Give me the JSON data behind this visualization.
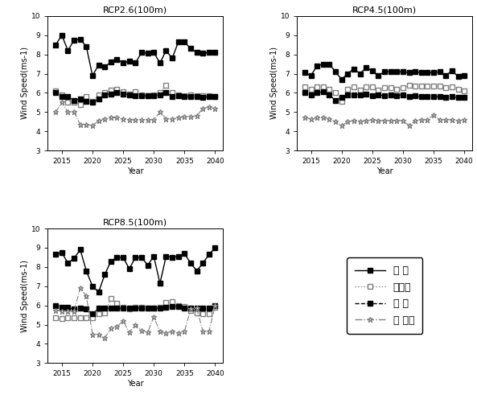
{
  "years": [
    2014,
    2015,
    2016,
    2017,
    2018,
    2019,
    2020,
    2021,
    2022,
    2023,
    2024,
    2025,
    2026,
    2027,
    2028,
    2029,
    2030,
    2031,
    2032,
    2033,
    2034,
    2035,
    2036,
    2037,
    2038,
    2039,
    2040
  ],
  "rcp26": {
    "hankang": [
      8.5,
      9.0,
      8.2,
      8.75,
      8.8,
      8.4,
      6.9,
      7.45,
      7.35,
      7.6,
      7.75,
      7.55,
      7.65,
      7.55,
      8.1,
      8.05,
      8.1,
      7.55,
      8.2,
      7.8,
      8.65,
      8.65,
      8.3,
      8.1,
      8.05,
      8.1,
      8.1
    ],
    "daegwallyeong": [
      6.1,
      5.9,
      5.5,
      5.5,
      5.4,
      5.8,
      5.55,
      5.9,
      6.0,
      6.15,
      6.2,
      6.05,
      5.95,
      6.05,
      5.9,
      5.85,
      5.9,
      6.0,
      6.4,
      6.0,
      5.9,
      5.85,
      5.9,
      5.85,
      5.85,
      5.85,
      5.8
    ],
    "yeongil": [
      6.0,
      5.8,
      5.8,
      5.6,
      5.7,
      5.55,
      5.5,
      5.7,
      5.9,
      5.95,
      6.0,
      5.95,
      5.9,
      5.85,
      5.85,
      5.85,
      5.85,
      5.9,
      6.0,
      5.8,
      5.85,
      5.8,
      5.8,
      5.8,
      5.75,
      5.8,
      5.8
    ],
    "seonamhae": [
      5.0,
      5.5,
      5.0,
      5.0,
      4.35,
      4.35,
      4.3,
      4.55,
      4.65,
      4.7,
      4.7,
      4.65,
      4.6,
      4.6,
      4.6,
      4.6,
      4.6,
      5.0,
      4.65,
      4.65,
      4.7,
      4.75,
      4.75,
      4.8,
      5.2,
      5.25,
      5.2
    ]
  },
  "rcp45": {
    "hankang": [
      7.05,
      6.9,
      7.4,
      7.5,
      7.5,
      7.1,
      6.7,
      7.0,
      7.25,
      7.0,
      7.3,
      7.15,
      6.9,
      7.1,
      7.1,
      7.1,
      7.1,
      7.05,
      7.1,
      7.05,
      7.05,
      7.05,
      7.1,
      6.9,
      7.15,
      6.85,
      6.9
    ],
    "daegwallyeong": [
      6.3,
      6.2,
      6.3,
      6.3,
      6.2,
      6.0,
      5.55,
      6.2,
      6.3,
      6.15,
      6.3,
      6.3,
      6.15,
      6.25,
      6.25,
      6.2,
      6.25,
      6.4,
      6.35,
      6.35,
      6.35,
      6.35,
      6.35,
      6.25,
      6.3,
      6.2,
      6.1
    ],
    "yeongil": [
      6.0,
      5.9,
      6.0,
      6.05,
      5.9,
      5.6,
      5.75,
      5.9,
      5.9,
      5.9,
      5.95,
      5.85,
      5.9,
      5.85,
      5.9,
      5.85,
      5.9,
      5.8,
      5.85,
      5.8,
      5.8,
      5.8,
      5.8,
      5.75,
      5.8,
      5.75,
      5.75
    ],
    "seonamhae": [
      4.7,
      4.65,
      4.7,
      4.7,
      4.65,
      4.5,
      4.3,
      4.5,
      4.55,
      4.5,
      4.55,
      4.6,
      4.55,
      4.55,
      4.55,
      4.55,
      4.55,
      4.3,
      4.55,
      4.6,
      4.6,
      4.85,
      4.6,
      4.6,
      4.6,
      4.55,
      4.6
    ]
  },
  "rcp85": {
    "hankang": [
      8.65,
      8.75,
      8.2,
      8.45,
      8.9,
      7.8,
      7.0,
      6.7,
      7.6,
      8.3,
      8.5,
      8.5,
      7.9,
      8.5,
      8.5,
      8.1,
      8.55,
      7.15,
      8.55,
      8.5,
      8.55,
      8.7,
      8.2,
      7.8,
      8.2,
      8.65,
      9.0
    ],
    "daegwallyeong": [
      5.35,
      5.3,
      5.35,
      5.35,
      5.35,
      5.35,
      5.35,
      5.55,
      5.6,
      6.35,
      6.1,
      5.9,
      5.8,
      5.9,
      5.9,
      5.85,
      5.85,
      5.9,
      6.15,
      6.2,
      6.0,
      5.95,
      5.75,
      5.6,
      5.55,
      5.55,
      5.9
    ],
    "yeongil": [
      6.0,
      5.9,
      5.9,
      5.8,
      5.85,
      5.8,
      5.55,
      5.85,
      5.85,
      5.85,
      5.85,
      5.85,
      5.85,
      5.85,
      5.85,
      5.85,
      5.85,
      5.85,
      5.9,
      5.95,
      5.95,
      5.85,
      5.85,
      5.85,
      5.85,
      5.85,
      6.0
    ],
    "seonamhae": [
      5.75,
      5.7,
      5.7,
      5.7,
      6.9,
      6.5,
      4.5,
      4.5,
      4.3,
      4.8,
      4.9,
      5.2,
      4.6,
      5.0,
      4.7,
      4.6,
      5.4,
      4.65,
      4.55,
      4.65,
      4.55,
      4.65,
      5.8,
      5.85,
      4.65,
      4.65,
      6.0
    ]
  },
  "legend_labels": [
    "한 경",
    "대관령",
    "영 일",
    "서 남해"
  ],
  "titles": [
    "RCP2.6(100m)",
    "RCP4.5(100m)",
    "RCP8.5(100m)"
  ],
  "ylabel": "Wind Speed(ms-1)",
  "xlabel": "Year",
  "ylim": [
    3,
    10
  ],
  "yticks": [
    3,
    4,
    5,
    6,
    7,
    8,
    9,
    10
  ]
}
